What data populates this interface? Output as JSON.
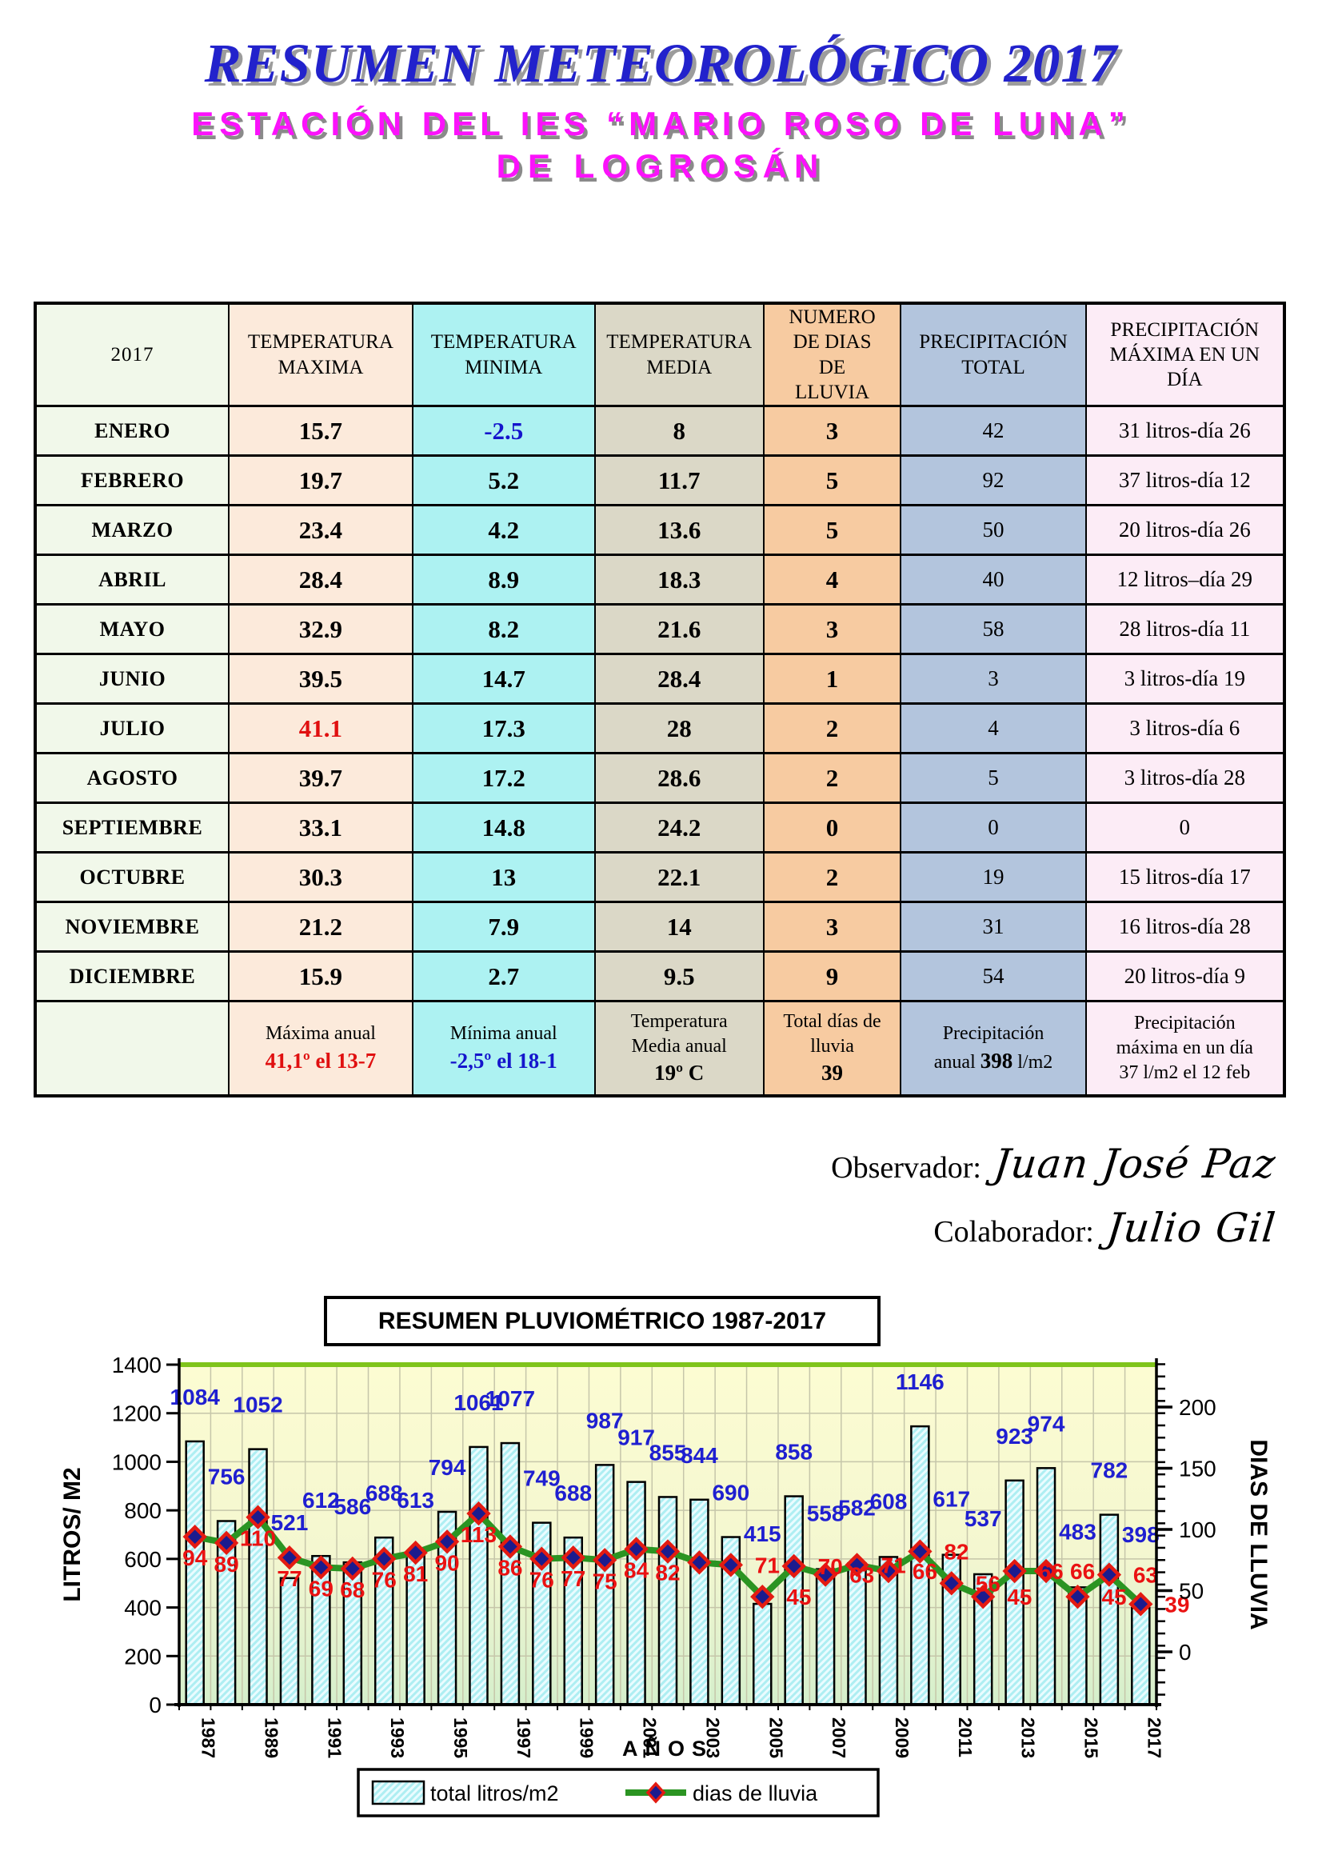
{
  "header": {
    "title": "RESUMEN METEOROLÓGICO 2017",
    "subtitle1": "ESTACIÓN DEL IES “MARIO ROSO DE LUNA”",
    "subtitle2": "DE LOGROSÁN"
  },
  "table": {
    "year": "2017",
    "columns": {
      "temp_max": "TEMPERATURA\nMAXIMA",
      "temp_min": "TEMPERATURA\nMINIMA",
      "temp_media": "TEMPERATURA\nMEDIA",
      "dias_lluvia": "NUMERO\nDE DIAS\nDE\nLLUVIA",
      "precip_total": "PRECIPITACIÓN\nTOTAL",
      "precip_max": "PRECIPITACIÓN\nMÁXIMA EN UN\nDÍA"
    },
    "rows": [
      {
        "month": "ENERO",
        "max": "15.7",
        "min": "-2.5",
        "media": "8",
        "dias": "3",
        "precip": "42",
        "precip_max": "31 litros-día 26",
        "min_style": "cold"
      },
      {
        "month": "FEBRERO",
        "max": "19.7",
        "min": "5.2",
        "media": "11.7",
        "dias": "5",
        "precip": "92",
        "precip_max": "37 litros-día 12"
      },
      {
        "month": "MARZO",
        "max": "23.4",
        "min": "4.2",
        "media": "13.6",
        "dias": "5",
        "precip": "50",
        "precip_max": "20 litros-día 26"
      },
      {
        "month": "ABRIL",
        "max": "28.4",
        "min": "8.9",
        "media": "18.3",
        "dias": "4",
        "precip": "40",
        "precip_max": "12 litros–día 29"
      },
      {
        "month": "MAYO",
        "max": "32.9",
        "min": "8.2",
        "media": "21.6",
        "dias": "3",
        "precip": "58",
        "precip_max": "28 litros-día 11"
      },
      {
        "month": "JUNIO",
        "max": "39.5",
        "min": "14.7",
        "media": "28.4",
        "dias": "1",
        "precip": "3",
        "precip_max": "3 litros-día 19"
      },
      {
        "month": "JULIO",
        "max": "41.1",
        "min": "17.3",
        "media": "28",
        "dias": "2",
        "precip": "4",
        "precip_max": "3 litros-día 6",
        "max_style": "hot"
      },
      {
        "month": "AGOSTO",
        "max": "39.7",
        "min": "17.2",
        "media": "28.6",
        "dias": "2",
        "precip": "5",
        "precip_max": "3 litros-día 28"
      },
      {
        "month": "SEPTIEMBRE",
        "max": "33.1",
        "min": "14.8",
        "media": "24.2",
        "dias": "0",
        "precip": "0",
        "precip_max": "0"
      },
      {
        "month": "OCTUBRE",
        "max": "30.3",
        "min": "13",
        "media": "22.1",
        "dias": "2",
        "precip": "19",
        "precip_max": "15 litros-día 17"
      },
      {
        "month": "NOVIEMBRE",
        "max": "21.2",
        "min": "7.9",
        "media": "14",
        "dias": "3",
        "precip": "31",
        "precip_max": "16 litros-día 28"
      },
      {
        "month": "DICIEMBRE",
        "max": "15.9",
        "min": "2.7",
        "media": "9.5",
        "dias": "9",
        "precip": "54",
        "precip_max": "20 litros-día 9"
      }
    ],
    "summary": {
      "maxima_label": "Máxima anual",
      "maxima_value": "41,1º el 13-7",
      "minima_label": "Mínima anual",
      "minima_value": "-2,5º el 18-1",
      "media_label": "Temperatura\nMedia anual",
      "media_value": "19º C",
      "dias_label": "Total días de\nlluvia",
      "dias_value": "39",
      "precip_line1": "Precipitación",
      "precip_prefix": "anual ",
      "precip_bold": "398",
      "precip_suffix": " l/m2",
      "precip_max_text": "Precipitación\nmáxima en  un día\n37 l/m2 el 12 feb"
    }
  },
  "signatures": {
    "observador_label": "Observador:",
    "observador_name": "Juan José Paz",
    "colaborador_label": "Colaborador:",
    "colaborador_name": "Julio Gil"
  },
  "chart_data": {
    "type": "bar",
    "title": "RESUMEN PLUVIOMÉTRICO 1987-2017",
    "categories": [
      1987,
      1988,
      1989,
      1990,
      1991,
      1992,
      1993,
      1994,
      1995,
      1996,
      1997,
      1998,
      1999,
      2000,
      2001,
      2002,
      2003,
      2004,
      2005,
      2006,
      2007,
      2008,
      2009,
      2010,
      2011,
      2012,
      2013,
      2014,
      2015,
      2016,
      2017
    ],
    "x_tick_labels": [
      "1987",
      "1989",
      "1991",
      "1993",
      "1995",
      "1997",
      "1999",
      "2001",
      "2003",
      "2005",
      "2007",
      "2009",
      "2011",
      "2013",
      "2015",
      "2017"
    ],
    "series": [
      {
        "name": "total litros/m2",
        "type": "bar",
        "axis": "left",
        "values": [
          1084,
          756,
          1052,
          521,
          612,
          586,
          688,
          613,
          794,
          1061,
          1077,
          749,
          688,
          987,
          917,
          855,
          844,
          690,
          415,
          858,
          558,
          582,
          608,
          1146,
          617,
          537,
          923,
          974,
          483,
          782,
          398
        ]
      },
      {
        "name": "dias de lluvia",
        "type": "line",
        "axis": "right",
        "values": [
          94,
          89,
          110,
          77,
          69,
          68,
          76,
          81,
          90,
          113,
          86,
          76,
          77,
          75,
          84,
          82,
          73,
          71,
          45,
          70,
          63,
          71,
          66,
          82,
          56,
          45,
          66,
          66,
          45,
          63,
          39
        ],
        "labels": [
          "94",
          "89",
          "110",
          "77",
          "69",
          "68",
          "76",
          "81",
          "90",
          "113",
          "86",
          "76",
          "77",
          "75",
          "84",
          "82",
          "",
          "71",
          "45",
          "70",
          "63",
          "71",
          "66",
          "82",
          "56",
          "45",
          "66",
          "66",
          "45",
          "63",
          "39"
        ]
      }
    ],
    "xlabel": "AÑOS",
    "ylabel_left": "LITROS/ M2",
    "ylabel_right": "DIAS DE LLUVIA",
    "ylim_left": [
      0,
      1400
    ],
    "left_ticks": [
      0,
      200,
      400,
      600,
      800,
      1000,
      1200,
      1400
    ],
    "ylim_right_ticks": [
      0,
      50,
      100,
      150,
      200
    ],
    "grid": true,
    "legend_position": "bottom",
    "legend": [
      "total litros/m2",
      "dias de lluvia"
    ],
    "colors": {
      "bar_fill": "#aeeef2",
      "bar_hatch": "#eafcff",
      "bar_border": "#000000",
      "line": "#2b9422",
      "marker_fill": "#1b1b8e",
      "marker_stroke": "#e31b12",
      "value_label": "#1f1fd0",
      "day_label": "#ea1212",
      "plot_top_line": "#7fc41b",
      "grid_line": "#c6c6aa",
      "plot_bg_top": "#fcfcd2",
      "plot_bg_bottom": "#d5efcc"
    }
  }
}
